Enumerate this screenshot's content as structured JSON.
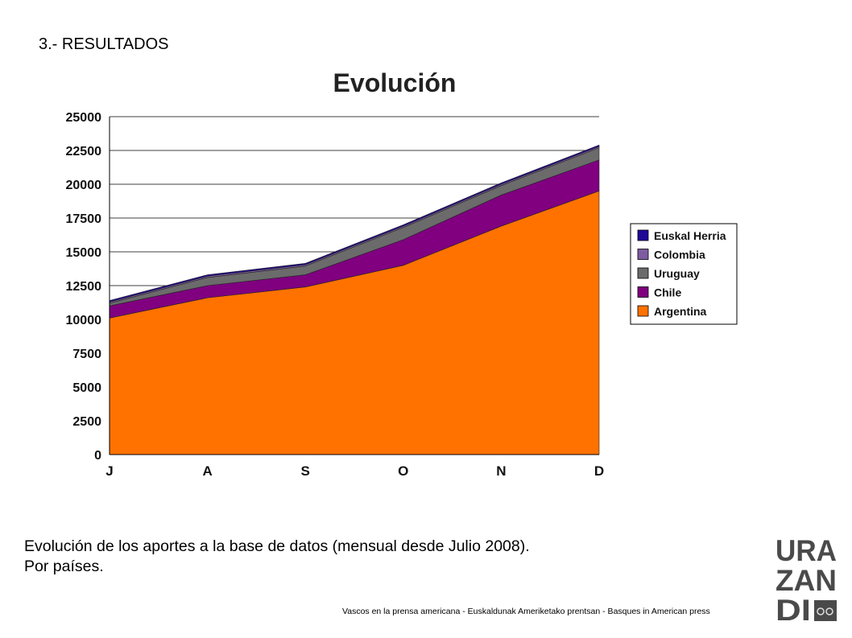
{
  "slide": {
    "section_title": "3.- RESULTADOS",
    "caption_line1": "Evolución de los aportes a la base de datos (mensual desde Julio 2008).",
    "caption_line2": "Por países.",
    "footer": "Vascos en la prensa americana - Euskaldunak Ameriketako prentsan - Basques in American press",
    "logo": {
      "line1": "URA",
      "line2": "ZAN",
      "line3": "DI",
      "color": "#4a4a4a"
    }
  },
  "chart_data": {
    "type": "area",
    "stacked": true,
    "title": "Evolución",
    "categories": [
      "J",
      "A",
      "S",
      "O",
      "N",
      "D"
    ],
    "yticks": [
      0,
      2500,
      5000,
      7500,
      10000,
      12500,
      15000,
      17500,
      20000,
      22500,
      25000
    ],
    "ylim": [
      0,
      25000
    ],
    "grid": "horizontal",
    "legend_position": "right",
    "series": [
      {
        "name": "Argentina",
        "color": "#ff7200",
        "values": [
          10100,
          11600,
          12400,
          14000,
          16900,
          19500
        ]
      },
      {
        "name": "Chile",
        "color": "#800080",
        "values": [
          900,
          900,
          900,
          1900,
          2300,
          2300
        ]
      },
      {
        "name": "Uruguay",
        "color": "#6b6b6b",
        "values": [
          200,
          600,
          650,
          900,
          700,
          900
        ]
      },
      {
        "name": "Colombia",
        "color": "#7e5ca0",
        "values": [
          100,
          100,
          100,
          100,
          100,
          100
        ]
      },
      {
        "name": "Euskal Herria",
        "color": "#1f0a99",
        "values": [
          100,
          100,
          100,
          100,
          100,
          100
        ]
      }
    ]
  }
}
